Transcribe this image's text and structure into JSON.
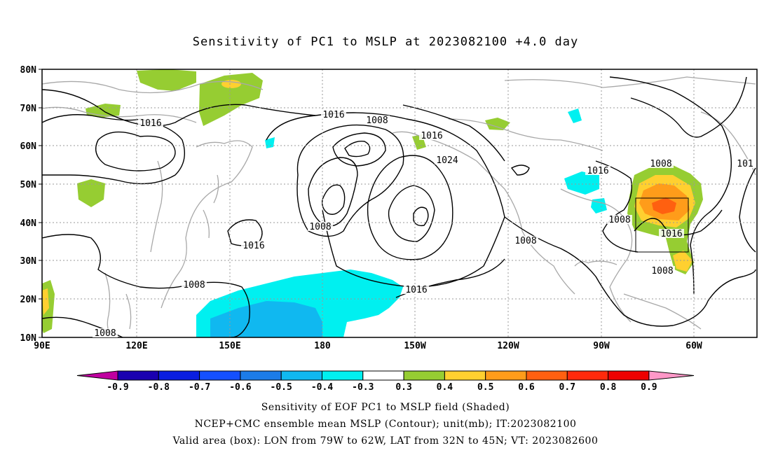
{
  "title": "Sensitivity of PC1 to MSLP at 2023082100 +4.0 day",
  "lat_labels": [
    "80N",
    "70N",
    "60N",
    "50N",
    "40N",
    "30N",
    "20N",
    "10N"
  ],
  "lon_labels": [
    "90E",
    "120E",
    "150E",
    "180",
    "150W",
    "120W",
    "90W",
    "60W"
  ],
  "contour_labels": [
    "1016",
    "1016",
    "1008",
    "1016",
    "1024",
    "1008",
    "1016",
    "1016",
    "1008",
    "1008",
    "1016",
    "1008",
    "1008",
    "1016",
    "1008",
    "101",
    "1008"
  ],
  "colorbar": {
    "labels": [
      "-0.9",
      "-0.8",
      "-0.7",
      "-0.6",
      "-0.5",
      "-0.4",
      "-0.3",
      "0.3",
      "0.4",
      "0.5",
      "0.6",
      "0.7",
      "0.8",
      "0.9"
    ],
    "colors": [
      "#c000a0",
      "#1a00b0",
      "#0a1ee0",
      "#1450ff",
      "#1c7ce8",
      "#10b8f0",
      "#00f0f0",
      "#ffffff",
      "#96cd32",
      "#ffd030",
      "#ff9c1a",
      "#ff6010",
      "#ff2a0c",
      "#ee0000",
      "#ff98c8"
    ]
  },
  "captions": {
    "line1": "Sensitivity of EOF PC1 to MSLP field (Shaded)",
    "line2": "NCEP+CMC ensemble mean MSLP (Contour); unit(mb); IT:2023082100",
    "line3": "Valid area (box): LON from 79W to 62W, LAT from 32N to 45N; VT: 2023082600"
  }
}
